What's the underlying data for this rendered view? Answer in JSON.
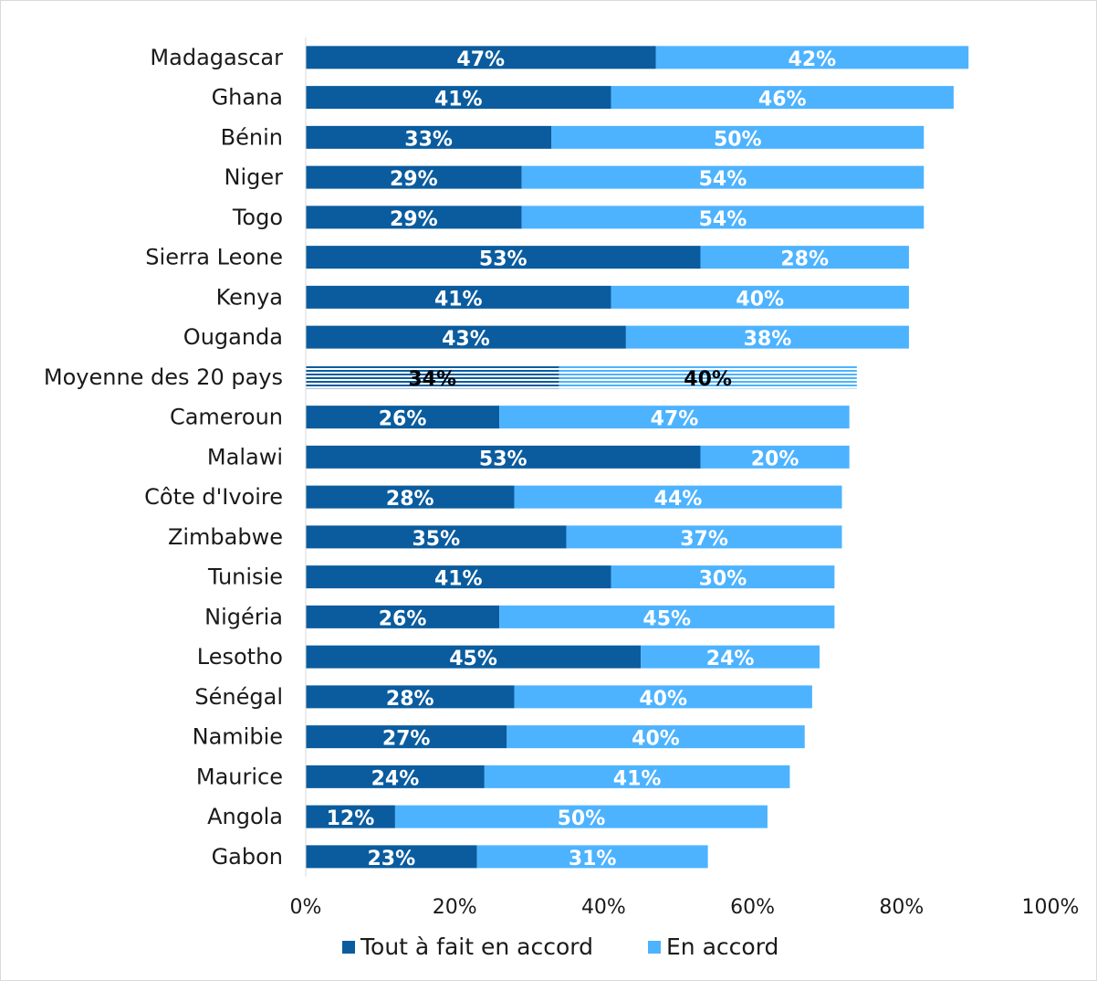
{
  "chart_data": {
    "type": "bar",
    "orientation": "horizontal",
    "stacked": true,
    "categories": [
      "Madagascar",
      "Ghana",
      "Bénin",
      "Niger",
      "Togo",
      "Sierra Leone",
      "Kenya",
      "Ouganda",
      "Moyenne des 20 pays",
      "Cameroun",
      "Malawi",
      "Côte d'Ivoire",
      "Zimbabwe",
      "Tunisie",
      "Nigéria",
      "Lesotho",
      "Sénégal",
      "Namibie",
      "Maurice",
      "Angola",
      "Gabon"
    ],
    "highlight_category": "Moyenne des 20 pays",
    "series": [
      {
        "name": "Tout à fait en accord",
        "color": "#0a5c9e",
        "values": [
          47,
          41,
          33,
          29,
          29,
          53,
          41,
          43,
          34,
          26,
          53,
          28,
          35,
          41,
          26,
          45,
          28,
          27,
          24,
          12,
          23
        ],
        "labels": [
          "47%",
          "41%",
          "33%",
          "29%",
          "29%",
          "53%",
          "41%",
          "43%",
          "34%",
          "26%",
          "53%",
          "28%",
          "35%",
          "41%",
          "26%",
          "45%",
          "28%",
          "27%",
          "24%",
          "12%",
          "23%"
        ]
      },
      {
        "name": "En accord",
        "color": "#4db3ff",
        "values": [
          42,
          46,
          50,
          54,
          54,
          28,
          40,
          38,
          40,
          47,
          20,
          44,
          37,
          30,
          45,
          24,
          40,
          40,
          41,
          50,
          31
        ],
        "labels": [
          "42%",
          "46%",
          "50%",
          "54%",
          "54%",
          "28%",
          "40%",
          "38%",
          "40%",
          "47%",
          "20%",
          "44%",
          "37%",
          "30%",
          "45%",
          "24%",
          "40%",
          "40%",
          "41%",
          "50%",
          "31%"
        ]
      }
    ],
    "xlim": [
      0,
      100
    ],
    "xticks": [
      "0%",
      "20%",
      "40%",
      "60%",
      "80%",
      "100%"
    ],
    "grid": false,
    "legend_position": "bottom",
    "legend": [
      "Tout à fait en accord",
      "En accord"
    ]
  }
}
